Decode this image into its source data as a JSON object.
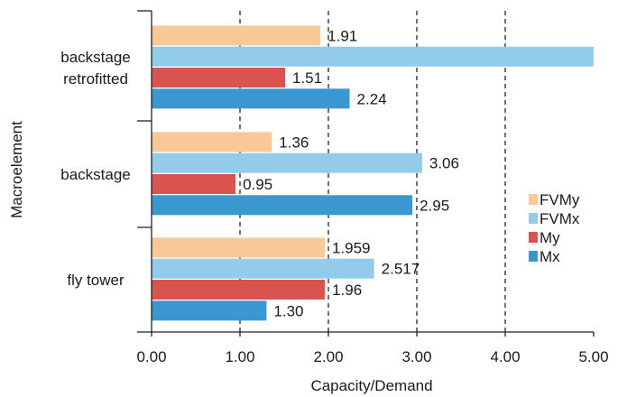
{
  "chart_data": {
    "type": "bar",
    "orientation": "horizontal",
    "title": "",
    "xlabel": "Capacity/Demand",
    "ylabel": "Macroelement",
    "xlim": [
      0,
      5
    ],
    "xticks": [
      "0.00",
      "1.00",
      "2.00",
      "3.00",
      "4.00",
      "5.00"
    ],
    "grid": "dashed vertical lines at 1.00, 2.00, 3.00, 4.00",
    "legend_position": "right",
    "categories": [
      {
        "lines": [
          "backstage",
          "retrofitted"
        ]
      },
      {
        "lines": [
          "backstage"
        ]
      },
      {
        "lines": [
          "fly tower"
        ]
      }
    ],
    "series": [
      {
        "name": "FVMy",
        "color": "#F8C896",
        "values": [
          1.91,
          1.36,
          1.959
        ],
        "labels": [
          "1.91",
          "1.36",
          "1.959"
        ]
      },
      {
        "name": "FVMx",
        "color": "#92CCEA",
        "values": [
          5.0,
          3.06,
          2.517
        ],
        "labels": [
          "",
          "3.06",
          "2.517"
        ]
      },
      {
        "name": "My",
        "color": "#D9534F",
        "values": [
          1.51,
          0.95,
          1.96
        ],
        "labels": [
          "1.51",
          "0.95",
          "1.96"
        ]
      },
      {
        "name": "Mx",
        "color": "#3A97CF",
        "values": [
          2.24,
          2.95,
          1.3
        ],
        "labels": [
          "2.24",
          "2.95",
          "1.30"
        ]
      }
    ]
  }
}
